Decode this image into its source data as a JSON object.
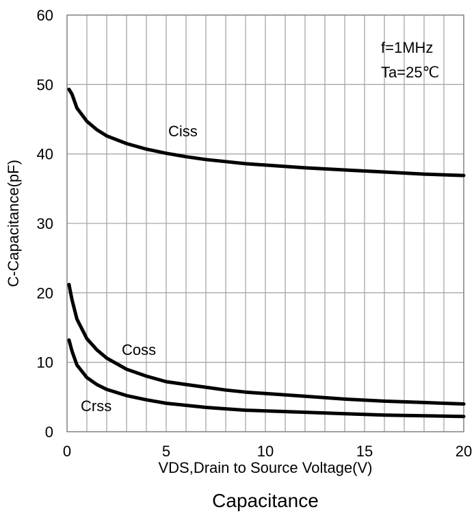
{
  "chart_data": {
    "type": "line",
    "title": "Capacitance",
    "xlabel": "VDS,Drain to Source Voltage(V)",
    "ylabel": "C-Capacitance(pF)",
    "xlim": [
      0,
      20
    ],
    "ylim": [
      0,
      60
    ],
    "x_ticks": [
      0,
      5,
      10,
      15,
      20
    ],
    "y_ticks": [
      0,
      10,
      20,
      30,
      40,
      50,
      60
    ],
    "x_minor_step": 1,
    "grid": true,
    "annotations": [
      "f=1MHz",
      "Ta=25℃"
    ],
    "series": [
      {
        "name": "Ciss",
        "x": [
          0.1,
          0.25,
          0.5,
          1,
          1.5,
          2,
          3,
          4,
          5,
          6,
          7,
          8,
          9,
          10,
          12,
          14,
          16,
          18,
          20
        ],
        "y": [
          49.3,
          48.6,
          46.6,
          44.7,
          43.5,
          42.6,
          41.5,
          40.7,
          40.1,
          39.6,
          39.2,
          38.9,
          38.6,
          38.4,
          38.0,
          37.7,
          37.4,
          37.1,
          36.9
        ]
      },
      {
        "name": "Coss",
        "x": [
          0.1,
          0.25,
          0.5,
          1,
          1.5,
          2,
          3,
          4,
          5,
          6,
          7,
          8,
          9,
          10,
          12,
          14,
          16,
          18,
          20
        ],
        "y": [
          21.2,
          19.0,
          16.2,
          13.4,
          11.8,
          10.6,
          9.0,
          8.0,
          7.2,
          6.8,
          6.4,
          6.0,
          5.7,
          5.5,
          5.1,
          4.7,
          4.4,
          4.2,
          4.0
        ]
      },
      {
        "name": "Crss",
        "x": [
          0.1,
          0.25,
          0.5,
          1,
          1.5,
          2,
          3,
          4,
          5,
          6,
          7,
          8,
          9,
          10,
          12,
          14,
          16,
          18,
          20
        ],
        "y": [
          13.2,
          11.6,
          9.6,
          7.8,
          6.8,
          6.1,
          5.2,
          4.6,
          4.1,
          3.8,
          3.5,
          3.3,
          3.1,
          3.0,
          2.8,
          2.6,
          2.4,
          2.3,
          2.2
        ]
      }
    ]
  }
}
